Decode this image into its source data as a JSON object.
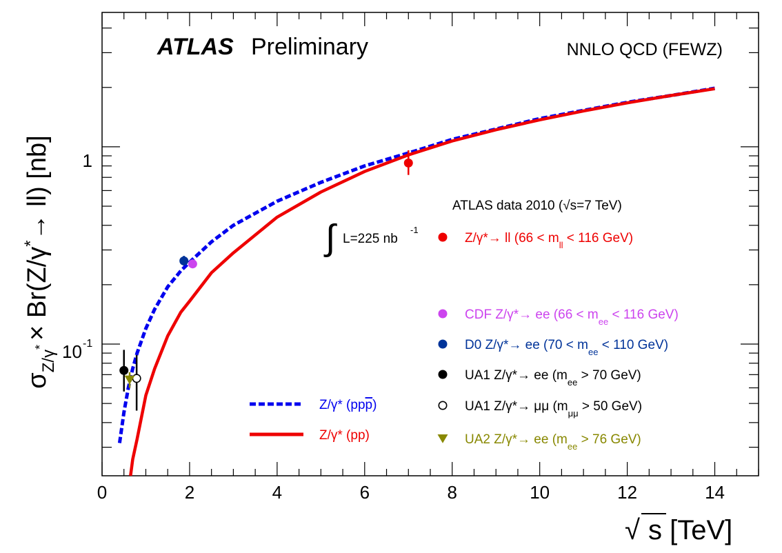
{
  "chart_data": {
    "type": "line",
    "y_scale": "log",
    "brand": "ATLAS",
    "status": "Preliminary",
    "theory_label": "NNLO QCD (FEWZ)",
    "xlim": [
      0,
      15
    ],
    "ylim": [
      0.0215,
      4.8
    ],
    "x_ticks": [
      0,
      2,
      4,
      6,
      8,
      10,
      12,
      14
    ],
    "x_tick_labels": [
      "0",
      "2",
      "4",
      "6",
      "8",
      "10",
      "12",
      "14"
    ],
    "y_tick_labels": {
      "one": "1",
      "tenth_base": "10",
      "tenth_exp": "-1"
    },
    "xlabel": {
      "sqrt": "√",
      "main": "s [TeV]"
    },
    "ylabel": {
      "sigma": "σ",
      "sigma_sub": "Z/γ",
      "sigma_sub_star": "*",
      "times": "× Br(Z/γ",
      "star": "*",
      "arrow": "→",
      "tail": " ll) [nb]"
    },
    "luminosity": {
      "integral": "∫",
      "text": "L=225 nb",
      "exp": "-1"
    },
    "data_header": "ATLAS data 2010 (√s=7 TeV)",
    "series": [
      {
        "name": "Z/γ* (pp̄)",
        "kind": "curve",
        "style": "dashed",
        "color": "#0000ee",
        "x": [
          0.4,
          0.5,
          0.6,
          0.7,
          0.8,
          1.0,
          1.2,
          1.5,
          1.8,
          2.0,
          2.5,
          3.0,
          4.0,
          5.0,
          6.0,
          7.0,
          8.0,
          9.0,
          10.0,
          11.0,
          12.0,
          13.0,
          14.0
        ],
        "y": [
          0.0315,
          0.045,
          0.06,
          0.075,
          0.09,
          0.12,
          0.15,
          0.195,
          0.235,
          0.26,
          0.33,
          0.4,
          0.53,
          0.66,
          0.8,
          0.93,
          1.09,
          1.23,
          1.39,
          1.53,
          1.68,
          1.82,
          1.98
        ]
      },
      {
        "name": "Z/γ* (pp)",
        "kind": "curve",
        "style": "solid",
        "color": "#ee0000",
        "x": [
          0.65,
          0.7,
          0.8,
          1.0,
          1.2,
          1.5,
          1.8,
          2.0,
          2.5,
          3.0,
          4.0,
          5.0,
          6.0,
          7.0,
          8.0,
          9.0,
          10.0,
          11.0,
          12.0,
          13.0,
          14.0
        ],
        "y": [
          0.0215,
          0.026,
          0.033,
          0.055,
          0.075,
          0.11,
          0.145,
          0.165,
          0.23,
          0.29,
          0.44,
          0.59,
          0.75,
          0.91,
          1.07,
          1.22,
          1.37,
          1.52,
          1.67,
          1.82,
          1.97
        ]
      },
      {
        "name": "Z/γ*→ ll",
        "kind": "point",
        "marker": "filled-circle",
        "color": "#ee0000",
        "x": 7.0,
        "y": 0.828,
        "err_low": 0.72,
        "err_high": 0.96,
        "legend": {
          "pre": "Z/γ*→ ll  (66 < m",
          "sub": "ll",
          "post": " < 116 GeV)"
        }
      },
      {
        "name": "CDF Z/γ*→ ee",
        "kind": "point",
        "marker": "filled-circle",
        "color": "#cc44ee",
        "x": 2.07,
        "y": 0.255,
        "err_low": 0.25,
        "err_high": 0.26,
        "legend": {
          "pre": "CDF Z/γ*→ ee  (66 < m",
          "sub": "ee",
          "post": " < 116 GeV)"
        }
      },
      {
        "name": "D0 Z/γ*→ ee",
        "kind": "point",
        "marker": "filled-circle",
        "color": "#003399",
        "x": 1.87,
        "y": 0.264,
        "err_low": 0.25,
        "err_high": 0.28,
        "legend": {
          "pre": "D0 Z/γ*→ ee     (70 < m",
          "sub": "ee",
          "post": " < 110 GeV)"
        }
      },
      {
        "name": "UA1 Z/γ*→ ee",
        "kind": "point",
        "marker": "filled-circle",
        "color": "#000000",
        "x": 0.5,
        "y": 0.0735,
        "err_low": 0.0575,
        "err_high": 0.0935,
        "legend": {
          "pre": "UA1 Z/γ*→ ee   (m",
          "sub": "ee",
          "post": " > 70 GeV)"
        }
      },
      {
        "name": "UA1 Z/γ*→ μμ",
        "kind": "point",
        "marker": "open-circle",
        "color": "#000000",
        "x": 0.79,
        "y": 0.067,
        "err_low": 0.046,
        "err_high": 0.088,
        "legend": {
          "pre": "UA1 Z/γ*→ μμ   (m",
          "sub": "μμ",
          "post": " > 50 GeV)"
        }
      },
      {
        "name": "UA2 Z/γ*→ ee",
        "kind": "point",
        "marker": "triangle-down",
        "color": "#888800",
        "x": 0.63,
        "y": 0.066,
        "err_low": 0.06,
        "err_high": 0.072,
        "legend": {
          "pre": "UA2 Z/γ*→ ee   (m",
          "sub": "ee",
          "post": " > 76 GeV)"
        }
      }
    ],
    "curve_legend": [
      {
        "label": "Z/γ* (pp",
        "bar": "p",
        "close": ")",
        "style": "dashed",
        "color": "#0000ee"
      },
      {
        "label": "Z/γ* (pp)",
        "bar": "",
        "close": "",
        "style": "solid",
        "color": "#ee0000"
      }
    ]
  }
}
